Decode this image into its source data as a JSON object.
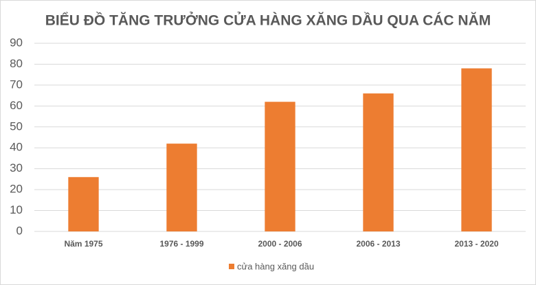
{
  "chart_data": {
    "type": "bar",
    "title": "BIỂU ĐỒ TĂNG TRƯỞNG CỬA HÀNG XĂNG DẦU QUA CÁC NĂM",
    "categories": [
      "Năm 1975",
      "1976 - 1999",
      "2000 - 2006",
      "2006 - 2013",
      "2013 - 2020"
    ],
    "series": [
      {
        "name": "cửa hàng xăng dầu",
        "color": "#ed7d31",
        "values": [
          26,
          42,
          62,
          66,
          78
        ]
      }
    ],
    "ylim": [
      0,
      90
    ],
    "yticks": [
      0,
      10,
      20,
      30,
      40,
      50,
      60,
      70,
      80,
      90
    ],
    "grid": true,
    "legend": "bottom"
  }
}
